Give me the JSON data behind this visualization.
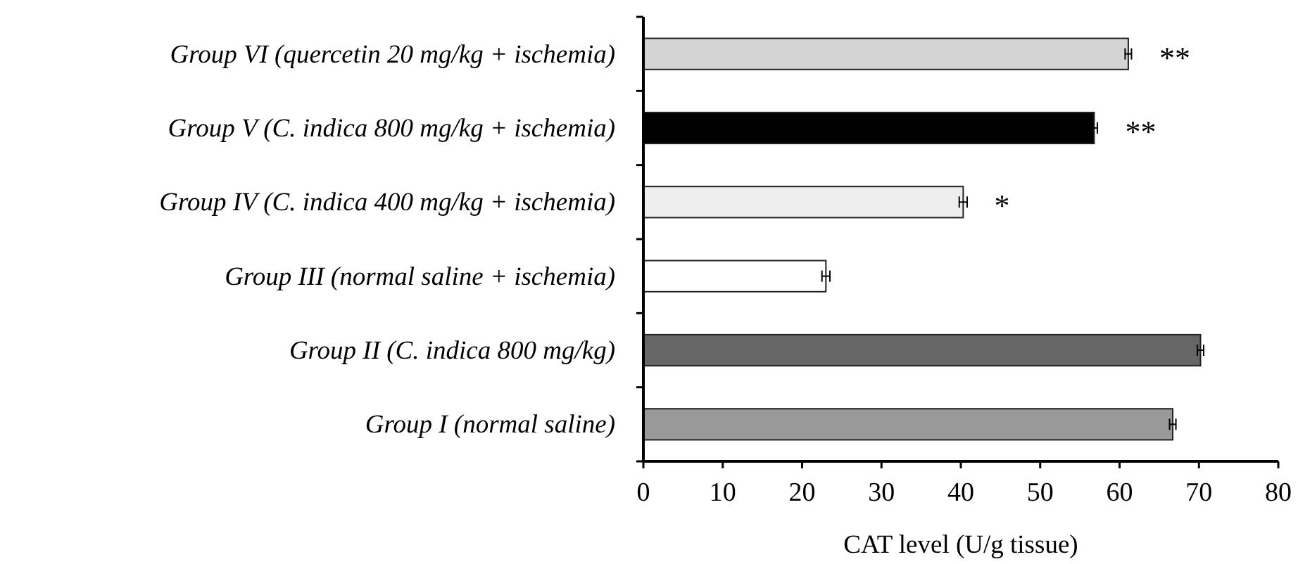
{
  "chart_data": {
    "type": "bar",
    "orientation": "horizontal",
    "xlabel": "CAT level (U/g tissue)",
    "categories": [
      "Group VI (quercetin 20 mg/kg + ischemia)",
      "Group V (C. indica 800 mg/kg + ischemia)",
      "Group IV (C. indica 400 mg/kg + ischemia)",
      "Group III (normal saline + ischemia)",
      "Group II (C. indica 800 mg/kg)",
      "Group I (normal saline)"
    ],
    "values": [
      61.1,
      56.8,
      40.3,
      23.0,
      70.2,
      66.7
    ],
    "errors": [
      0.4,
      0.4,
      0.5,
      0.5,
      0.4,
      0.4
    ],
    "colors": [
      "#d4d4d4",
      "#000000",
      "#eeeeee",
      "#ffffff",
      "#666666",
      "#999999"
    ],
    "xlim": [
      0,
      80
    ],
    "xticks": [
      0,
      10,
      20,
      30,
      40,
      50,
      60,
      70,
      80
    ],
    "grid": false,
    "annotations": [
      {
        "text": "**",
        "x": 61.1,
        "y": "Group VI (quercetin 20 mg/kg + ischemia)"
      },
      {
        "text": "**",
        "x": 56.8,
        "y": "Group V (C. indica 800 mg/kg + ischemia)"
      },
      {
        "text": "*",
        "x": 40.3,
        "y": "Group IV (C. indica 400 mg/kg + ischemia)"
      }
    ]
  }
}
